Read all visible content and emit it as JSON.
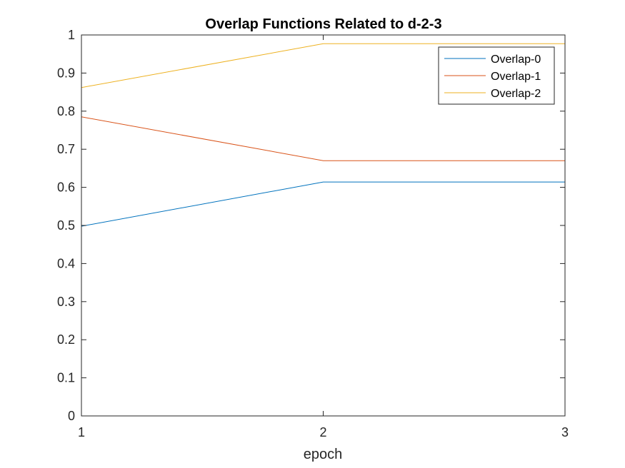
{
  "chart_data": {
    "type": "line",
    "title": "Overlap Functions Related to d-2-3",
    "xlabel": "epoch",
    "ylabel": "",
    "x": [
      1,
      2,
      3
    ],
    "xlim": [
      1,
      3
    ],
    "ylim": [
      0,
      1
    ],
    "xticks": [
      "1",
      "2",
      "3"
    ],
    "yticks": [
      "0",
      "0.1",
      "0.2",
      "0.3",
      "0.4",
      "0.5",
      "0.6",
      "0.7",
      "0.8",
      "0.9",
      "1"
    ],
    "grid": false,
    "legend_position": "top-right",
    "series": [
      {
        "name": "Overlap-0",
        "values": [
          0.498,
          0.614,
          0.614
        ],
        "color": "#0072BD"
      },
      {
        "name": "Overlap-1",
        "values": [
          0.785,
          0.67,
          0.67
        ],
        "color": "#D95319"
      },
      {
        "name": "Overlap-2",
        "values": [
          0.862,
          0.977,
          0.977
        ],
        "color": "#EDB120"
      }
    ]
  }
}
